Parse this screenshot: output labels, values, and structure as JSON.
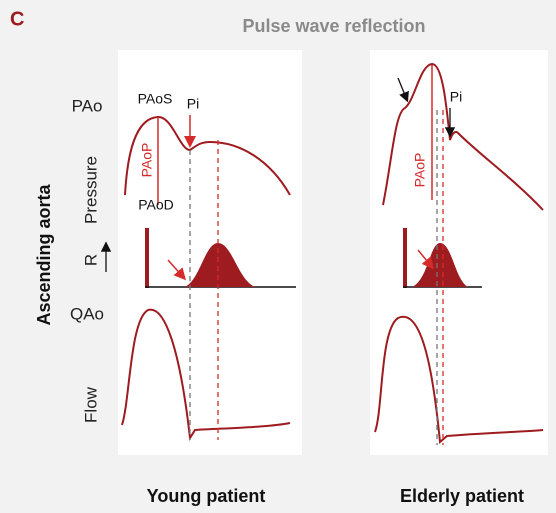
{
  "header": {
    "label": "C",
    "title": "Pulse wave reflection"
  },
  "axis_labels": {
    "pressure_top": "PAo",
    "pressure": "Pressure",
    "reflection": "R",
    "flow_top": "QAo",
    "flow": "Flow",
    "side": "Ascending aorta"
  },
  "panels": [
    {
      "title": "Young patient",
      "annotations": [
        "PAoS",
        "Pi",
        "PAoP",
        "PAoD"
      ]
    },
    {
      "title": "Elderly patient",
      "annotations": [
        "Pi",
        "PAoP"
      ]
    }
  ]
}
